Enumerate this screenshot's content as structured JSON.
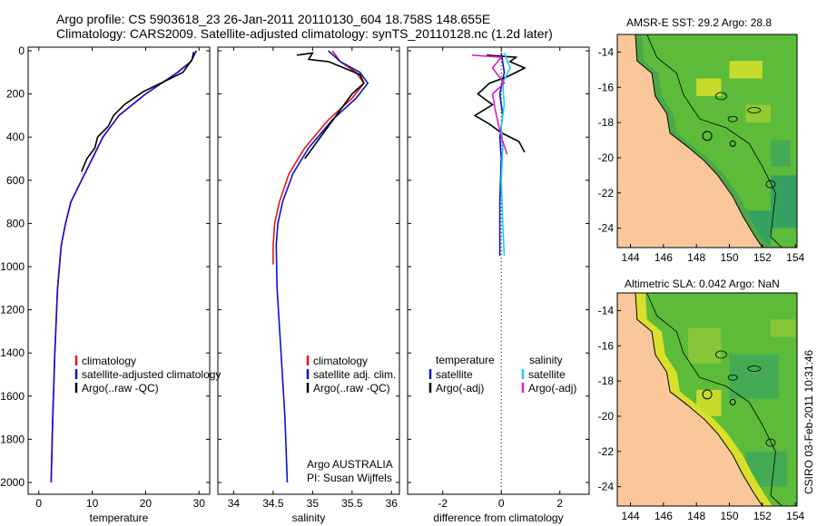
{
  "titles": {
    "line1": "Argo profile: CS 5903618_23 26-Jan-2011 20110130_604 18.758S 148.655E",
    "line2": "Climatology: CARS2009. Satellite-adjusted climatology: synTS_20110128.nc (1.2d later)",
    "sst_map": "AMSR-E SST: 29.2 Argo: 28.8",
    "sla_map": "Altimetric SLA: 0.042 Argo: NaN",
    "credit": "CSIRO 03-Feb-2011 10:31:46"
  },
  "colors": {
    "climatology": "#e41a1c",
    "satellite": "#1010d0",
    "argo": "#000000",
    "sat_salinity": "#19d3e6",
    "argo_salinity": "#e619d3",
    "land": "#f9c79a",
    "ocean_dark": "#2e9d6a",
    "ocean_mid": "#5dbb3a",
    "ocean_light": "#d9e02a"
  },
  "chart_data": [
    {
      "type": "line",
      "xlabel": "temperature",
      "xlim": [
        -2,
        32
      ],
      "xticks": [
        0,
        10,
        20,
        30
      ],
      "ylim": [
        0,
        2050
      ],
      "yticks": [
        0,
        200,
        400,
        600,
        800,
        1000,
        1200,
        1400,
        1600,
        1800,
        2000
      ],
      "legend": [
        "climatology",
        "satellite-adjusted climatology",
        "Argo(..raw -QC)"
      ],
      "series": [
        {
          "name": "climatology",
          "color": "#e41a1c",
          "x": [
            29.5,
            28.5,
            26,
            20,
            15,
            12,
            10,
            8,
            6,
            5,
            4.2,
            3.5,
            3.0,
            2.6,
            2.3
          ],
          "y": [
            0,
            50,
            100,
            200,
            300,
            400,
            500,
            600,
            700,
            800,
            900,
            1100,
            1400,
            1700,
            2000
          ]
        },
        {
          "name": "satellite-adjusted climatology",
          "color": "#1010d0",
          "x": [
            29.5,
            28.5,
            26,
            20,
            15,
            12,
            10,
            8,
            6,
            5,
            4.2,
            3.5,
            3.0,
            2.6,
            2.3
          ],
          "y": [
            0,
            50,
            100,
            200,
            300,
            400,
            500,
            600,
            700,
            800,
            900,
            1100,
            1400,
            1700,
            2000
          ]
        },
        {
          "name": "Argo(..raw -QC)",
          "color": "#000000",
          "x": [
            29.0,
            28.7,
            27,
            22,
            19.5,
            16,
            14,
            13,
            11,
            10.5,
            9,
            8
          ],
          "y": [
            5,
            40,
            100,
            160,
            190,
            250,
            300,
            350,
            400,
            450,
            500,
            560
          ]
        }
      ]
    },
    {
      "type": "line",
      "xlabel": "salinity",
      "xlim": [
        33.8,
        36.1
      ],
      "xticks": [
        34,
        34.5,
        35,
        35.5,
        36
      ],
      "ylim": [
        0,
        2050
      ],
      "legend": [
        "climatology",
        "satellite adj. clim.",
        "Argo(..raw -QC)"
      ],
      "annotation": [
        "Argo AUSTRALIA",
        "PI: Susan Wijffels"
      ],
      "series": [
        {
          "name": "climatology",
          "color": "#e41a1c",
          "x": [
            35.25,
            35.35,
            35.55,
            35.65,
            35.5,
            35.2,
            34.9,
            34.7,
            34.58,
            34.52,
            34.5,
            34.5
          ],
          "y": [
            0,
            50,
            100,
            150,
            220,
            320,
            450,
            570,
            700,
            800,
            900,
            990
          ]
        },
        {
          "name": "satellite adj. clim.",
          "color": "#1010d0",
          "x": [
            35.2,
            35.35,
            35.6,
            35.7,
            35.55,
            35.25,
            34.95,
            34.75,
            34.62,
            34.56,
            34.54,
            34.55,
            34.6,
            34.65,
            34.68
          ],
          "y": [
            0,
            50,
            100,
            150,
            220,
            320,
            450,
            570,
            700,
            800,
            900,
            1100,
            1400,
            1700,
            2000
          ]
        },
        {
          "name": "Argo(..raw -QC)",
          "color": "#000000",
          "x": [
            34.8,
            35.0,
            34.95,
            35.2,
            35.4,
            35.6,
            35.65,
            35.5,
            35.3,
            35.1,
            34.9
          ],
          "y": [
            20,
            10,
            40,
            50,
            80,
            110,
            150,
            200,
            300,
            400,
            500
          ]
        }
      ]
    },
    {
      "type": "line",
      "xlabel": "difference from climatology",
      "xlim": [
        -3.2,
        3.0
      ],
      "xticks": [
        -2,
        0,
        2
      ],
      "ylim": [
        0,
        2050
      ],
      "legend": [
        "temperature",
        "satellite",
        "Argo(-adj)",
        "salinity",
        "satellite",
        "Argo(-adj)"
      ],
      "series": [
        {
          "name": "satellite",
          "color": "#1010d0",
          "x": [
            0.0,
            0.1,
            -0.05,
            0.05,
            -0.05,
            0.0,
            -0.05,
            -0.05,
            -0.05
          ],
          "y": [
            10,
            100,
            200,
            300,
            400,
            500,
            700,
            850,
            950
          ]
        },
        {
          "name": "Argo(-adj)",
          "color": "#000000",
          "x": [
            -0.5,
            0.5,
            0.3,
            0.8,
            0.2,
            -0.4,
            -0.8,
            -0.3,
            -0.9,
            -0.4,
            0.0,
            0.6,
            0.8
          ],
          "y": [
            20,
            30,
            50,
            80,
            120,
            150,
            200,
            250,
            300,
            340,
            380,
            420,
            470
          ]
        },
        {
          "name": "satellite",
          "color": "#19d3e6",
          "x": [
            0.1,
            0.3,
            0.05,
            0.1,
            0.0,
            0.05,
            0.0,
            0.05,
            0.1
          ],
          "y": [
            10,
            80,
            150,
            250,
            350,
            450,
            600,
            800,
            950
          ]
        },
        {
          "name": "Argo(-adj)",
          "color": "#e619d3",
          "x": [
            -1.0,
            0.0,
            -0.3,
            0.1,
            -0.3,
            -0.2,
            0.0,
            0.2
          ],
          "y": [
            20,
            30,
            80,
            150,
            200,
            280,
            400,
            480
          ]
        }
      ]
    }
  ],
  "maps": {
    "lon_ticks": [
      144,
      146,
      148,
      150,
      152,
      154
    ],
    "lon_range": [
      143.2,
      154.1
    ],
    "lat_ticks": [
      -14,
      -16,
      -18,
      -20,
      -22,
      -24
    ],
    "lat_range": [
      -25.1,
      -13.0
    ],
    "argo_lat": -18.758,
    "argo_lon": 148.655
  }
}
